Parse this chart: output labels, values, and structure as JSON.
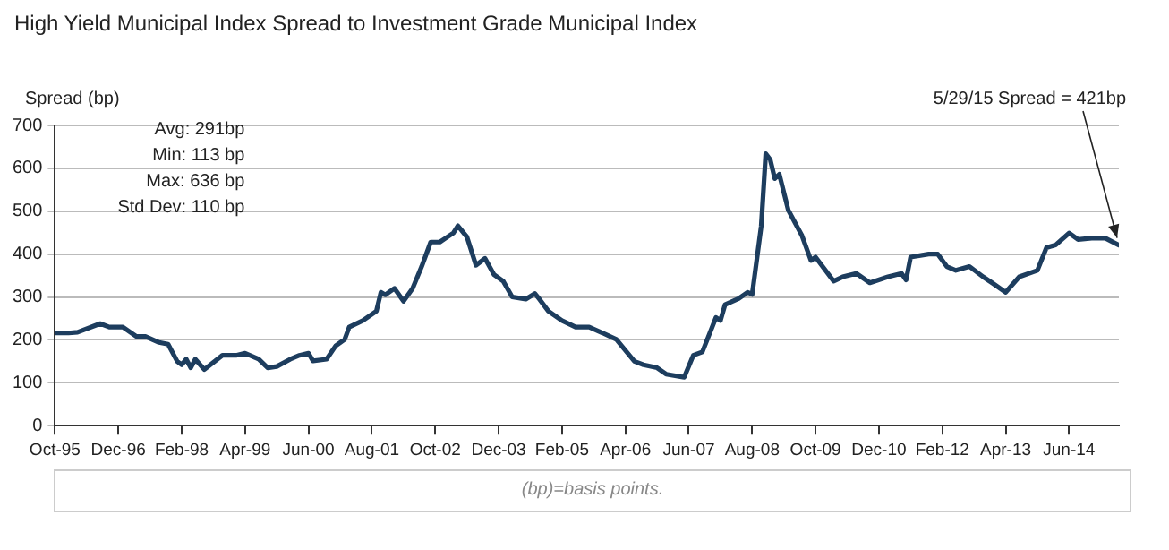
{
  "chart_data": {
    "type": "line",
    "title": "High Yield Municipal Index Spread to Investment Grade Municipal Index",
    "ylabel": "Spread (bp)",
    "annotations": [
      "Avg: 291bp",
      "Min: 113 bp",
      "Max: 636 bp",
      "Std Dev: 110 bp",
      {
        "text": "5/29/15 Spread = 421bp",
        "x": "2015-05",
        "y": 421
      },
      "(bp)=basis points."
    ],
    "xlim": [
      "1995-10",
      "2015-05"
    ],
    "xticks": [
      {
        "value": "1995-10",
        "label": "Oct-95"
      },
      {
        "value": "1996-12",
        "label": "Dec-96"
      },
      {
        "value": "1998-02",
        "label": "Feb-98"
      },
      {
        "value": "1999-04",
        "label": "Apr-99"
      },
      {
        "value": "2000-06",
        "label": "Jun-00"
      },
      {
        "value": "2001-08",
        "label": "Aug-01"
      },
      {
        "value": "2002-10",
        "label": "Oct-02"
      },
      {
        "value": "2003-12",
        "label": "Dec-03"
      },
      {
        "value": "2005-02",
        "label": "Feb-05"
      },
      {
        "value": "2006-04",
        "label": "Apr-06"
      },
      {
        "value": "2007-06",
        "label": "Jun-07"
      },
      {
        "value": "2008-08",
        "label": "Aug-08"
      },
      {
        "value": "2009-10",
        "label": "Oct-09"
      },
      {
        "value": "2010-12",
        "label": "Dec-10"
      },
      {
        "value": "2012-02",
        "label": "Feb-12"
      },
      {
        "value": "2013-04",
        "label": "Apr-13"
      },
      {
        "value": "2014-06",
        "label": "Jun-14"
      }
    ],
    "ylim": [
      0,
      700
    ],
    "yticks": [
      0,
      100,
      200,
      300,
      400,
      500,
      600,
      700
    ],
    "grid": "y",
    "legend": false,
    "marker": "none",
    "line_style": "solid",
    "series": [
      {
        "color": "#1d3d5e",
        "x": [
          "1995-10",
          "1996-01",
          "1996-03",
          "1996-08",
          "1996-10",
          "1997-01",
          "1997-04",
          "1997-06",
          "1997-09",
          "1997-11",
          "1998-01",
          "1998-02",
          "1998-03",
          "1998-04",
          "1998-05",
          "1998-07",
          "1998-11",
          "1999-02",
          "1999-04",
          "1999-07",
          "1999-09",
          "1999-11",
          "2000-02",
          "2000-04",
          "2000-06",
          "2000-07",
          "2000-10",
          "2000-12",
          "2001-02",
          "2001-03",
          "2001-06",
          "2001-09",
          "2001-10",
          "2001-11",
          "2002-01",
          "2002-03",
          "2002-05",
          "2002-07",
          "2002-09",
          "2002-11",
          "2002-12",
          "2003-02",
          "2003-03",
          "2003-05",
          "2003-07",
          "2003-09",
          "2003-11",
          "2004-01",
          "2004-03",
          "2004-06",
          "2004-08",
          "2004-09",
          "2004-11",
          "2005-02",
          "2005-05",
          "2005-08",
          "2005-11",
          "2006-02",
          "2006-06",
          "2006-08",
          "2006-11",
          "2007-01",
          "2007-05",
          "2007-07",
          "2007-09",
          "2007-12",
          "2008-01",
          "2008-02",
          "2008-05",
          "2008-07",
          "2008-08",
          "2008-10",
          "2008-11",
          "2008-12",
          "2009-01",
          "2009-02",
          "2009-04",
          "2009-07",
          "2009-09",
          "2009-10",
          "2010-02",
          "2010-04",
          "2010-07",
          "2010-10",
          "2011-02",
          "2011-05",
          "2011-06",
          "2011-07",
          "2011-11",
          "2012-01",
          "2012-03",
          "2012-05",
          "2012-08",
          "2012-11",
          "2013-01",
          "2013-04",
          "2013-07",
          "2013-11",
          "2014-01",
          "2014-03",
          "2014-06",
          "2014-08",
          "2014-11",
          "2015-02",
          "2015-05"
        ],
        "values": [
          216,
          216,
          218,
          238,
          230,
          230,
          208,
          208,
          194,
          190,
          150,
          142,
          155,
          135,
          155,
          131,
          164,
          164,
          169,
          155,
          135,
          138,
          155,
          164,
          169,
          151,
          155,
          186,
          201,
          230,
          245,
          267,
          311,
          305,
          320,
          290,
          320,
          371,
          428,
          428,
          435,
          449,
          466,
          440,
          374,
          390,
          352,
          337,
          300,
          295,
          308,
          295,
          267,
          245,
          230,
          230,
          216,
          201,
          150,
          142,
          135,
          120,
          113,
          164,
          172,
          252,
          245,
          282,
          296,
          311,
          306,
          465,
          634,
          620,
          576,
          586,
          502,
          443,
          385,
          393,
          337,
          347,
          355,
          333,
          347,
          355,
          340,
          393,
          400,
          400,
          371,
          362,
          371,
          347,
          333,
          311,
          347,
          362,
          415,
          421,
          449,
          434,
          437,
          437,
          421
        ]
      }
    ]
  }
}
